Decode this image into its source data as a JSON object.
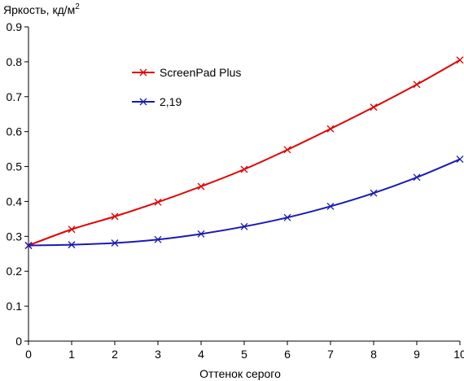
{
  "chart_data": {
    "type": "line",
    "title": "",
    "ylabel": "Яркость, кд/м",
    "ylabel_superscript": "2",
    "xlabel": "Оттенок серого",
    "xlim": [
      0,
      10
    ],
    "ylim": [
      0,
      0.9
    ],
    "x_ticks": [
      "0",
      "1",
      "2",
      "3",
      "4",
      "5",
      "6",
      "7",
      "8",
      "9",
      "10"
    ],
    "y_ticks": [
      "0",
      "0.1",
      "0.2",
      "0.3",
      "0.4",
      "0.5",
      "0.6",
      "0.7",
      "0.8",
      "0.9"
    ],
    "grid": false,
    "legend_placement": "top-left",
    "x": [
      0,
      1,
      2,
      3,
      4,
      5,
      6,
      7,
      8,
      9,
      10
    ],
    "series": [
      {
        "name": "ScreenPad Plus",
        "color": "#e00000",
        "marker": "x",
        "values": [
          0.274,
          0.32,
          0.357,
          0.398,
          0.443,
          0.492,
          0.548,
          0.608,
          0.67,
          0.735,
          0.805
        ]
      },
      {
        "name": "2,19",
        "color": "#1a1ab4",
        "marker": "x",
        "values": [
          0.274,
          0.276,
          0.281,
          0.291,
          0.307,
          0.328,
          0.354,
          0.386,
          0.424,
          0.469,
          0.521
        ]
      }
    ]
  }
}
